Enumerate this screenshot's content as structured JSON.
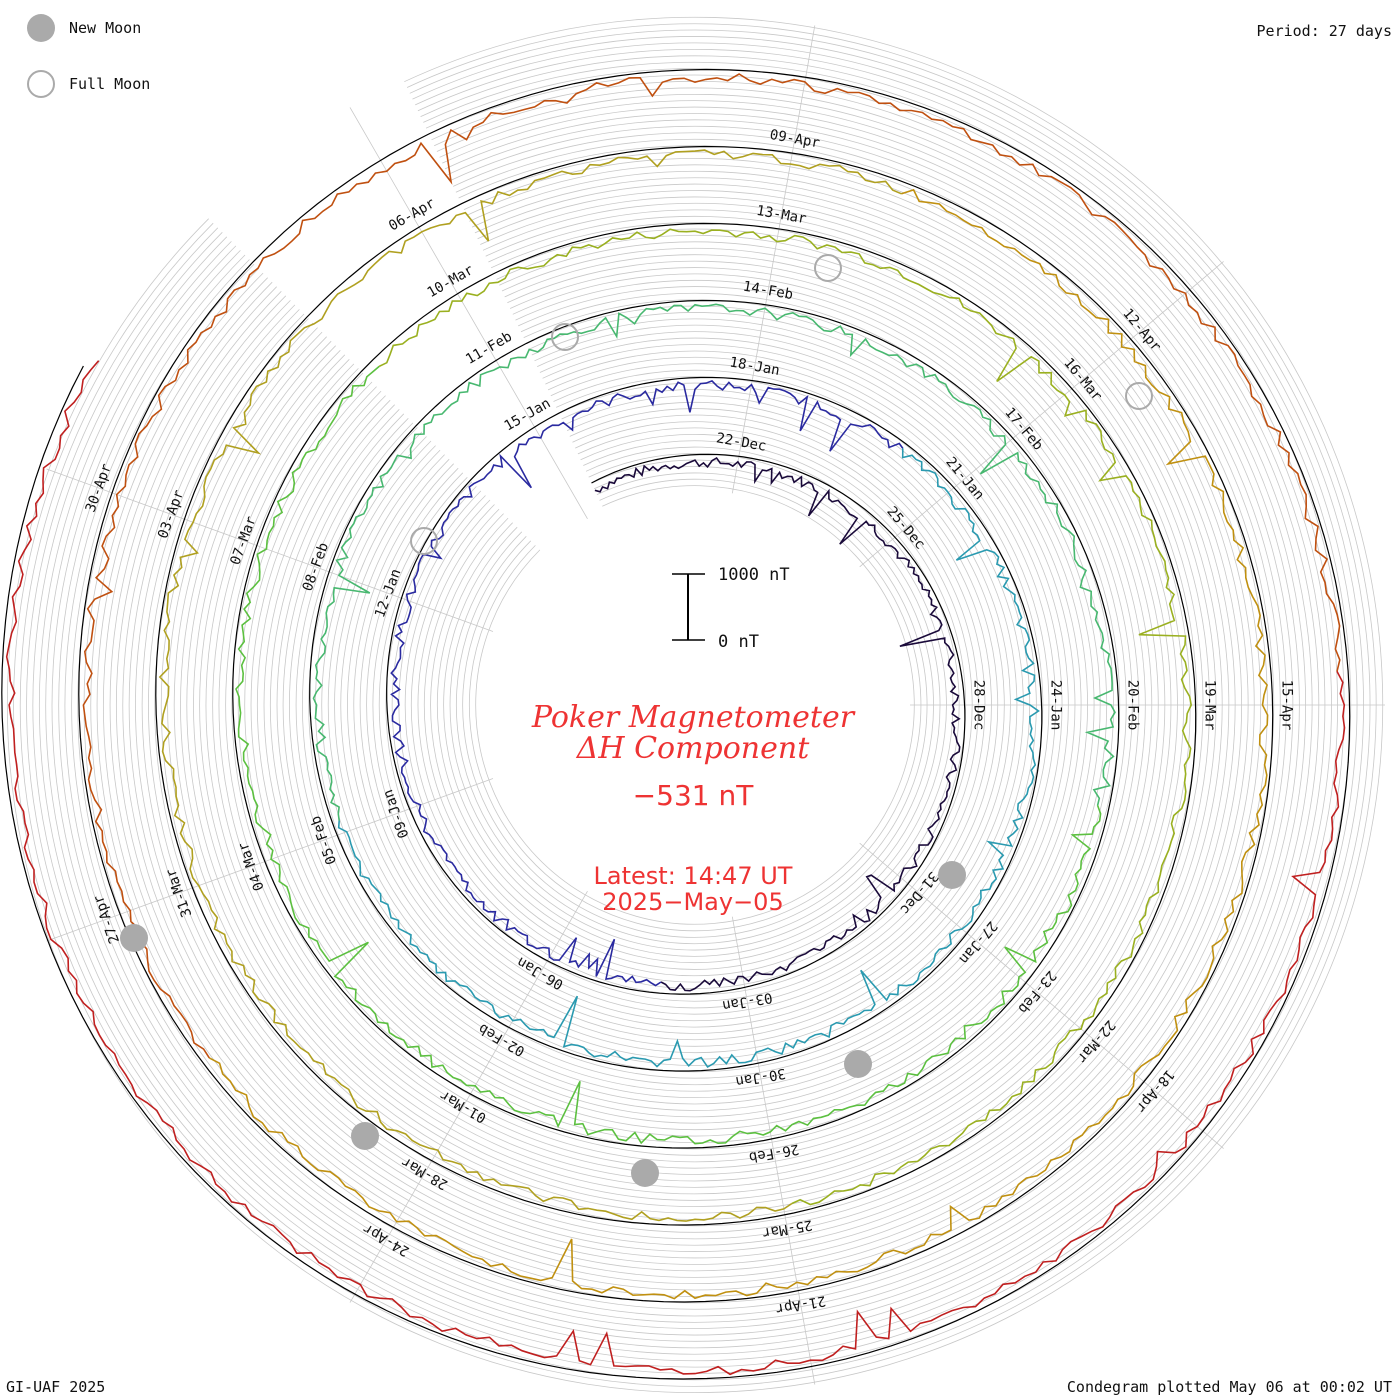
{
  "legend": {
    "new_moon_label": "New Moon",
    "full_moon_label": "Full Moon",
    "new_moon_color": "#aaaaaa",
    "full_moon_color": "#aaaaaa"
  },
  "period_label": "Period: 27 days",
  "footer_left": "GI-UAF 2025",
  "footer_right": "Condegram plotted May 06 at 00:02 UT",
  "chart_data": {
    "type": "line",
    "subtype": "spiral-condegram",
    "title_line1": "Poker Magnetometer",
    "title_line2": "ΔH Component",
    "current_value": "−531 nT",
    "latest_line1": "Latest: 14:47 UT",
    "latest_line2": "2025−May−05",
    "title_color": "#ee3333",
    "scale_bar": {
      "top_label": "1000 nT",
      "bottom_label": "0 nT",
      "value_nT": 1000
    },
    "period_days": 27,
    "start_date": "2024-12-20",
    "end_date": "2025-05-05",
    "rotations": [
      {
        "color": "#1a0a3a",
        "dates": [
          "22-Dec",
          "25-Dec",
          "28-Dec",
          "31-Dec",
          "03-Jan",
          "06-Jan",
          "09-Jan",
          "12-Jan",
          "15-Jan"
        ]
      },
      {
        "color": "#2a2aa0",
        "dates": [
          "18-Jan",
          "21-Jan",
          "24-Jan",
          "27-Jan",
          "30-Jan",
          "02-Feb",
          "05-Feb",
          "08-Feb",
          "11-Feb"
        ]
      },
      {
        "color": "#2a9ab0",
        "dates": [
          "14-Feb",
          "17-Feb",
          "20-Feb",
          "23-Feb",
          "26-Feb",
          "01-Mar",
          "04-Mar",
          "07-Mar",
          "10-Mar"
        ]
      },
      {
        "color": "#5cc040",
        "dates": [
          "13-Mar",
          "16-Mar",
          "19-Mar",
          "22-Mar",
          "25-Mar",
          "28-Mar",
          "31-Mar",
          "03-Apr",
          "06-Apr"
        ]
      },
      {
        "color": "#b0a020",
        "dates": [
          "09-Apr",
          "12-Apr",
          "15-Apr",
          "18-Apr",
          "21-Apr",
          "24-Apr",
          "27-Apr",
          "30-Apr"
        ]
      },
      {
        "color": "#c02020",
        "dates": []
      }
    ],
    "moon_markers": [
      {
        "type": "new",
        "date": "30-Dec"
      },
      {
        "type": "new",
        "date": "29-Jan"
      },
      {
        "type": "new",
        "date": "28-Feb"
      },
      {
        "type": "new",
        "date": "29-Mar"
      },
      {
        "type": "new",
        "date": "27-Apr"
      },
      {
        "type": "full",
        "date": "13-Jan"
      },
      {
        "type": "full",
        "date": "12-Feb"
      },
      {
        "type": "full",
        "date": "14-Mar"
      },
      {
        "type": "full",
        "date": "13-Apr"
      }
    ]
  }
}
